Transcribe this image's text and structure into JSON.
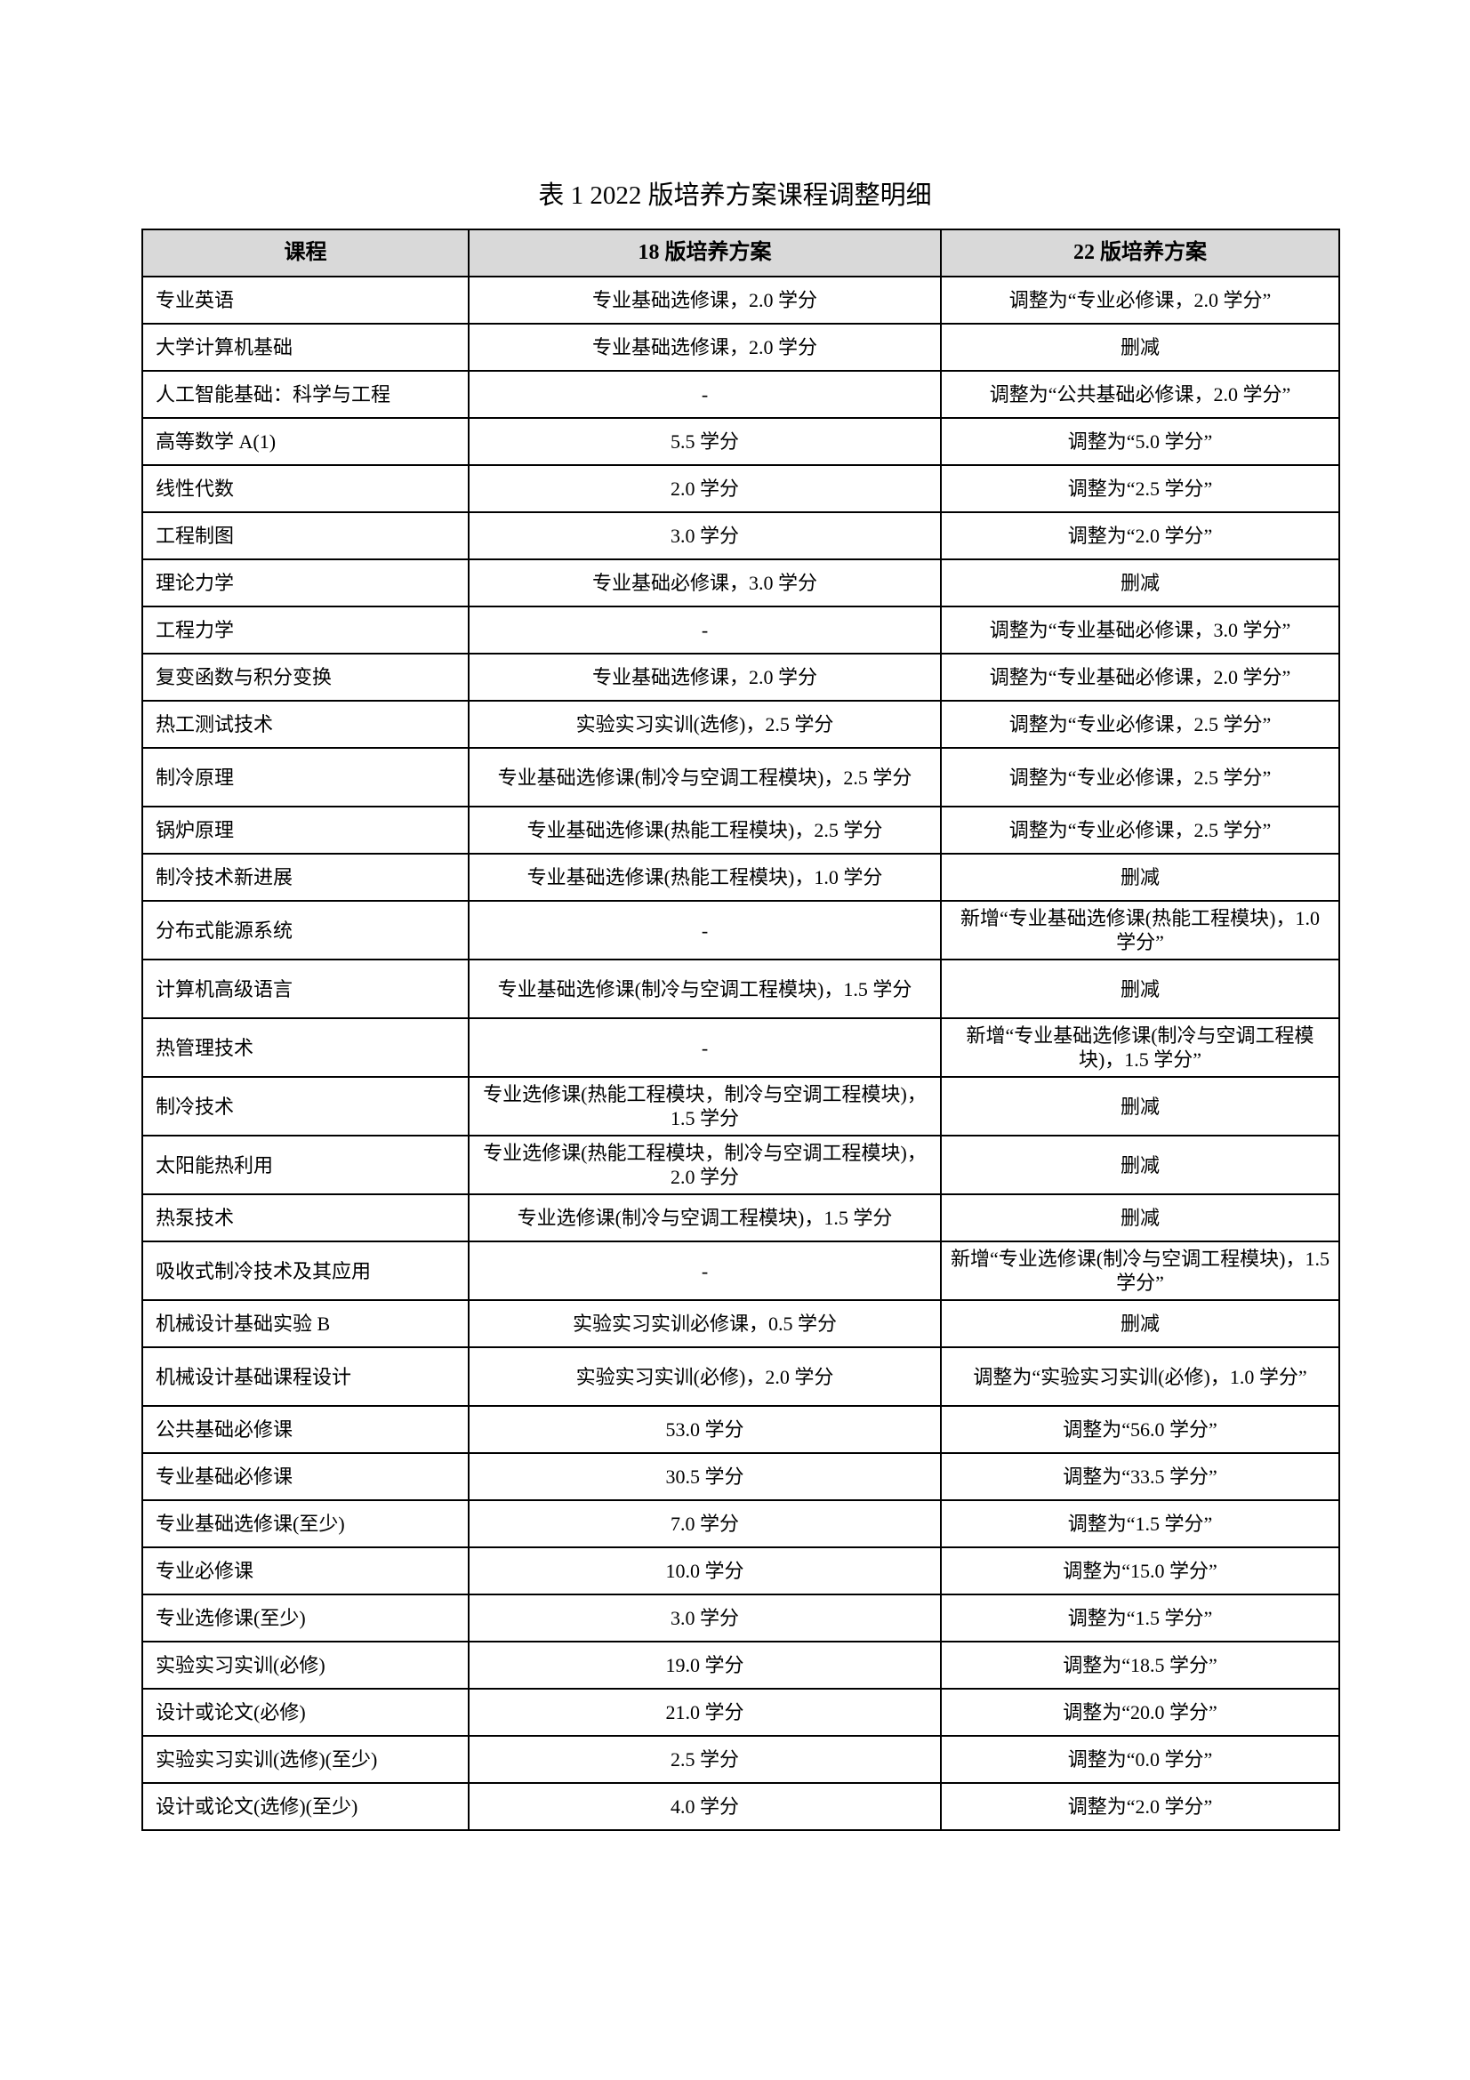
{
  "title": "表 1 2022 版培养方案课程调整明细",
  "table": {
    "headers": [
      "课程",
      "18 版培养方案",
      "22 版培养方案"
    ],
    "rows": [
      [
        "专业英语",
        "专业基础选修课，2.0 学分",
        "调整为“专业必修课，2.0 学分”"
      ],
      [
        "大学计算机基础",
        "专业基础选修课，2.0 学分",
        "删减"
      ],
      [
        "人工智能基础：科学与工程",
        "-",
        "调整为“公共基础必修课，2.0 学分”"
      ],
      [
        "高等数学 A(1)",
        "5.5 学分",
        "调整为“5.0 学分”"
      ],
      [
        "线性代数",
        "2.0 学分",
        "调整为“2.5 学分”"
      ],
      [
        "工程制图",
        "3.0 学分",
        "调整为“2.0 学分”"
      ],
      [
        "理论力学",
        "专业基础必修课，3.0 学分",
        "删减"
      ],
      [
        "工程力学",
        "-",
        "调整为“专业基础必修课，3.0 学分”"
      ],
      [
        "复变函数与积分变换",
        "专业基础选修课，2.0 学分",
        "调整为“专业基础必修课，2.0 学分”"
      ],
      [
        "热工测试技术",
        "实验实习实训(选修)，2.5 学分",
        "调整为“专业必修课，2.5 学分”"
      ],
      [
        "制冷原理",
        "专业基础选修课(制冷与空调工程模块)，2.5 学分",
        "调整为“专业必修课，2.5 学分”"
      ],
      [
        "锅炉原理",
        "专业基础选修课(热能工程模块)，2.5 学分",
        "调整为“专业必修课，2.5 学分”"
      ],
      [
        "制冷技术新进展",
        "专业基础选修课(热能工程模块)，1.0 学分",
        "删减"
      ],
      [
        "分布式能源系统",
        "-",
        "新增“专业基础选修课(热能工程模块)，1.0 学分”"
      ],
      [
        "计算机高级语言",
        "专业基础选修课(制冷与空调工程模块)，1.5 学分",
        "删减"
      ],
      [
        "热管理技术",
        "-",
        "新增“专业基础选修课(制冷与空调工程模块)，1.5 学分”"
      ],
      [
        "制冷技术",
        "专业选修课(热能工程模块，制冷与空调工程模块)，1.5 学分",
        "删减"
      ],
      [
        "太阳能热利用",
        "专业选修课(热能工程模块，制冷与空调工程模块)，2.0 学分",
        "删减"
      ],
      [
        "热泵技术",
        "专业选修课(制冷与空调工程模块)，1.5 学分",
        "删减"
      ],
      [
        "吸收式制冷技术及其应用",
        "-",
        "新增“专业选修课(制冷与空调工程模块)，1.5 学分”"
      ],
      [
        "机械设计基础实验 B",
        "实验实习实训必修课，0.5 学分",
        "删减"
      ],
      [
        "机械设计基础课程设计",
        "实验实习实训(必修)，2.0 学分",
        "调整为“实验实习实训(必修)，1.0 学分”"
      ],
      [
        "公共基础必修课",
        "53.0 学分",
        "调整为“56.0 学分”"
      ],
      [
        "专业基础必修课",
        "30.5 学分",
        "调整为“33.5 学分”"
      ],
      [
        "专业基础选修课(至少)",
        "7.0 学分",
        "调整为“1.5 学分”"
      ],
      [
        "专业必修课",
        "10.0 学分",
        "调整为“15.0 学分”"
      ],
      [
        "专业选修课(至少)",
        "3.0 学分",
        "调整为“1.5 学分”"
      ],
      [
        "实验实习实训(必修)",
        "19.0 学分",
        "调整为“18.5 学分”"
      ],
      [
        "设计或论文(必修)",
        "21.0 学分",
        "调整为“20.0 学分”"
      ],
      [
        "实验实习实训(选修)(至少)",
        "2.5 学分",
        "调整为“0.0 学分”"
      ],
      [
        "设计或论文(选修)(至少)",
        "4.0 学分",
        "调整为“2.0 学分”"
      ]
    ]
  }
}
